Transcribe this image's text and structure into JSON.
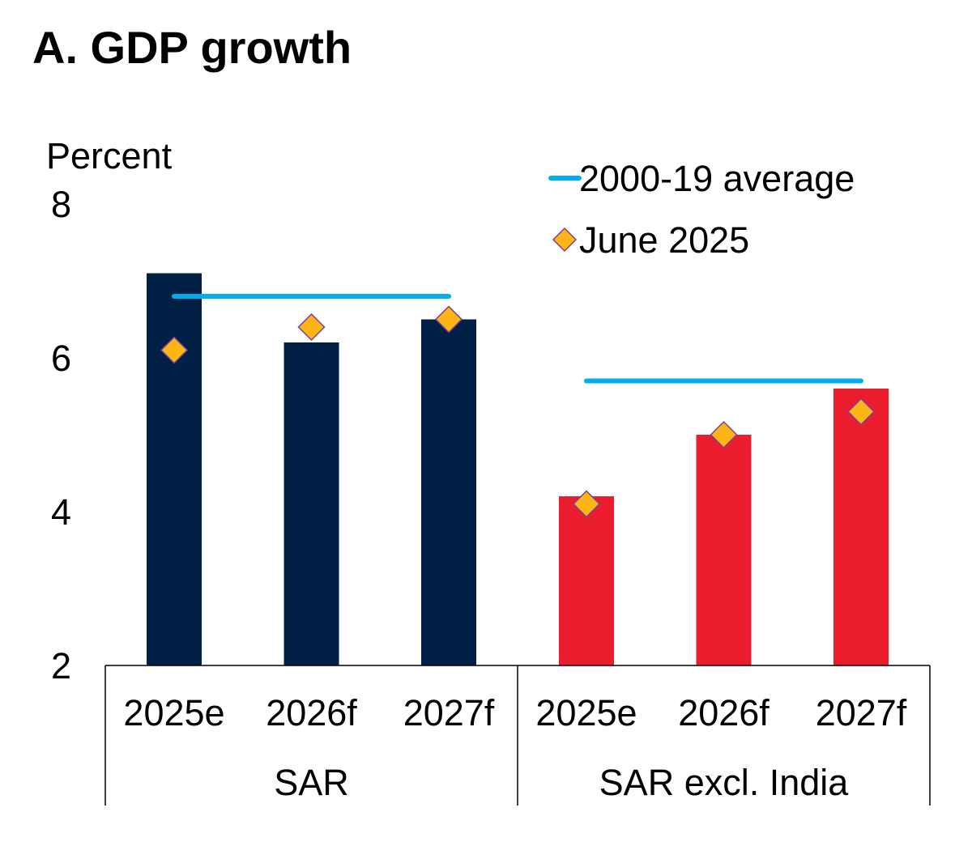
{
  "chart_data": {
    "type": "bar",
    "title": "A. GDP growth",
    "ylabel": "Percent",
    "ylim": [
      2,
      8
    ],
    "yticks": [
      2,
      4,
      6,
      8
    ],
    "grid": false,
    "legend_placement": "top-right",
    "groups": [
      {
        "label": "SAR",
        "categories": [
          "2025e",
          "2026f",
          "2027f"
        ],
        "bar_color": "#002145",
        "values": [
          7.1,
          6.2,
          6.5
        ],
        "june_2025": [
          6.1,
          6.4,
          6.5
        ],
        "average": 6.8
      },
      {
        "label": "SAR excl. India",
        "categories": [
          "2025e",
          "2026f",
          "2027f"
        ],
        "bar_color": "#EB1C2D",
        "values": [
          4.2,
          5.0,
          5.6
        ],
        "june_2025": [
          4.1,
          5.0,
          5.3
        ],
        "average": 5.7
      }
    ],
    "legend": [
      {
        "name": "2000-19 average",
        "marker": "line",
        "color": "#00AEEF"
      },
      {
        "name": "June 2025",
        "marker": "diamond",
        "color": "#FDB515"
      }
    ]
  }
}
